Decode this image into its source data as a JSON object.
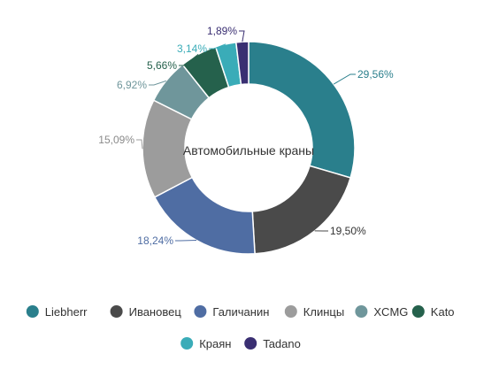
{
  "chart_data": {
    "type": "pie",
    "subtype": "donut",
    "center_label": "Автомобильные краны",
    "value_suffix": "%",
    "decimal_separator": ",",
    "legend_position": "bottom",
    "slices": [
      {
        "name": "Liebherr",
        "value": 29.56,
        "color": "#2a7f8c",
        "label_color": "#2a7f8c"
      },
      {
        "name": "Ивановец",
        "value": 19.5,
        "color": "#4a4a4a",
        "label_color": "#333333"
      },
      {
        "name": "Галичанин",
        "value": 18.24,
        "color": "#4f6da3",
        "label_color": "#4f6da3"
      },
      {
        "name": "Клинцы",
        "value": 15.09,
        "color": "#9c9c9c",
        "label_color": "#8a8a8a"
      },
      {
        "name": "XCMG",
        "value": 6.92,
        "color": "#6f969b",
        "label_color": "#6f969b"
      },
      {
        "name": "Kato",
        "value": 5.66,
        "color": "#25614c",
        "label_color": "#25614c"
      },
      {
        "name": "Краян",
        "value": 3.14,
        "color": "#3aacb8",
        "label_color": "#3aacb8"
      },
      {
        "name": "Tadano",
        "value": 1.89,
        "color": "#3a2f72",
        "label_color": "#3a2f72"
      }
    ]
  }
}
